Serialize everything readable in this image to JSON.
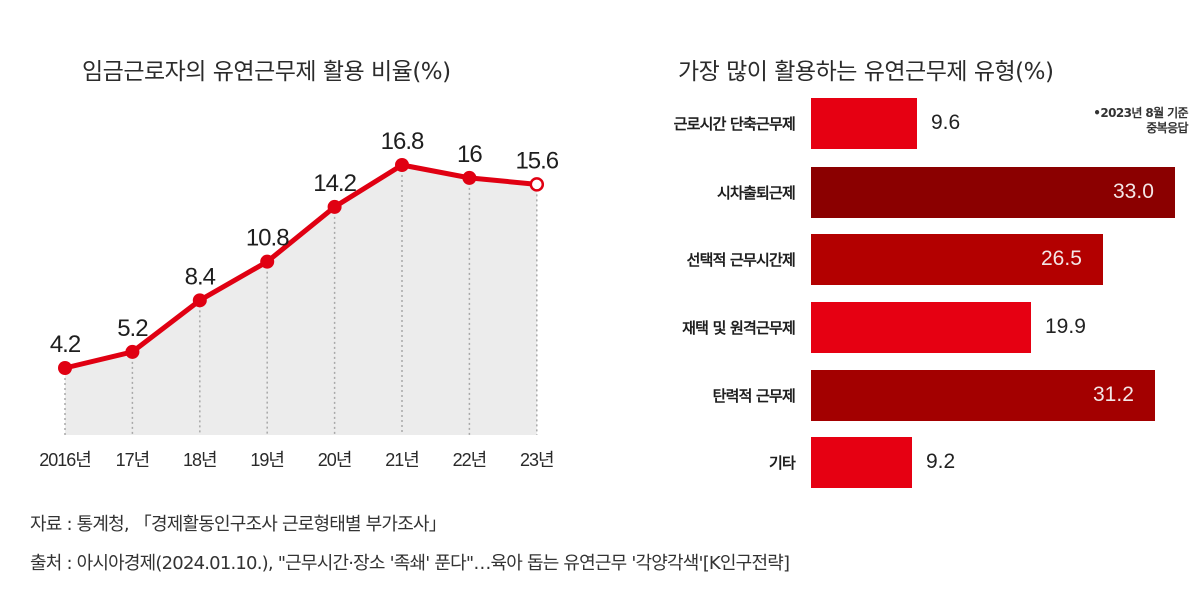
{
  "left_chart": {
    "title": "임금근로자의 유연근무제 활용 비율(%)"
  },
  "right_chart": {
    "title": "가장 많이 활용하는 유연근무제 유형(%)",
    "note_line1": "•2023년 8월 기준",
    "note_line2": "중복응답"
  },
  "footer": {
    "source": "자료 : 통계청, 「경제활동인구조사 근로형태별 부가조사」",
    "citation": "출처 : 아시아경제(2024.01.10.), \"근무시간·장소 '족쇄' 푼다\"…육아 돕는 유연근무 '각양각색'[K인구전략]"
  },
  "colors": {
    "line": "#e00012",
    "area_fill": "#ececec",
    "bar_bright": "#e60012",
    "bar_mid": "#b30000",
    "bar_dark": "#8b0000"
  },
  "chart_data": [
    {
      "type": "line",
      "title": "임금근로자의 유연근무제 활용 비율(%)",
      "x": [
        "2016년",
        "17년",
        "18년",
        "19년",
        "20년",
        "21년",
        "22년",
        "23년"
      ],
      "values": [
        4.2,
        5.2,
        8.4,
        10.8,
        14.2,
        16.8,
        16,
        15.6
      ],
      "value_labels": [
        "4.2",
        "5.2",
        "8.4",
        "10.8",
        "14.2",
        "16.8",
        "16",
        "15.6"
      ],
      "xlabel": "",
      "ylabel": "%",
      "grid": false,
      "area_fill": true,
      "last_point_hollow": true
    },
    {
      "type": "bar",
      "orientation": "horizontal",
      "title": "가장 많이 활용하는 유연근무제 유형(%)",
      "categories": [
        "근로시간 단축근무제",
        "시차출퇴근제",
        "선택적 근무시간제",
        "재택 및 원격근무제",
        "탄력적 근무제",
        "기타"
      ],
      "values": [
        9.6,
        33.0,
        26.5,
        19.9,
        31.2,
        9.2
      ],
      "value_labels": [
        "9.6",
        "33.0",
        "26.5",
        "19.9",
        "31.2",
        "9.2"
      ],
      "bar_colors": [
        "#e60012",
        "#8b0000",
        "#b30000",
        "#e60012",
        "#a30000",
        "#e60012"
      ],
      "annotation": "•2023년 8월 기준 중복응답",
      "xlabel": "",
      "ylabel": ""
    }
  ]
}
